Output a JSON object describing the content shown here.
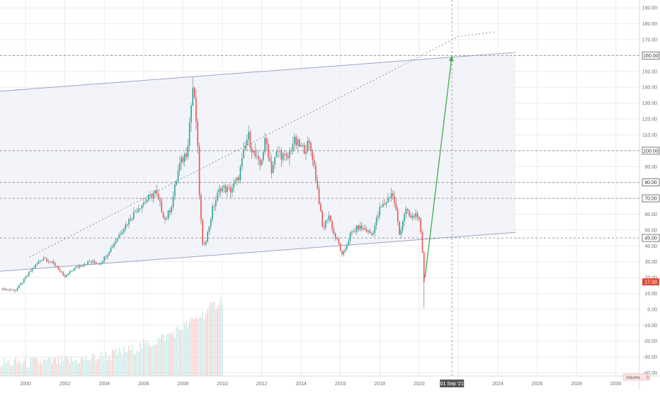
{
  "chart_data": {
    "type": "candlestick",
    "frequency": "monthly",
    "title": "",
    "xlabel": "",
    "ylabel": "",
    "y_axis_side": "right",
    "ylim": [
      -42,
      195
    ],
    "xlim": [
      1998.7,
      2031.2
    ],
    "y_ticks": [
      -40,
      -30,
      -20,
      -10,
      0,
      10,
      20,
      30,
      40,
      50,
      60,
      70,
      80,
      90,
      100,
      110,
      120,
      130,
      140,
      150,
      160,
      170,
      180,
      190
    ],
    "y_tick_labels": [
      "-40.00",
      "-30.00",
      "-20.00",
      "-10.00",
      "0.00",
      "10.00",
      "20.00",
      "30.00",
      "40.00",
      "50.00",
      "60.00",
      "70.00",
      "80.00",
      "90.00",
      "100.00",
      "110.00",
      "120.00",
      "130.00",
      "140.00",
      "150.00",
      "160.00",
      "170.00",
      "180.00",
      "190.00"
    ],
    "x_ticks": [
      2000,
      2002,
      2004,
      2006,
      2008,
      2010,
      2012,
      2014,
      2016,
      2018,
      2020,
      2022,
      2024,
      2026,
      2028,
      2030
    ],
    "x_tick_labels": [
      "2000",
      "2002",
      "2004",
      "2006",
      "2008",
      "2010",
      "2012",
      "2014",
      "2016",
      "2018",
      "2020",
      "",
      "2024",
      "2026",
      "2028",
      "2030"
    ],
    "price_anchors": [
      [
        1998.75,
        13
      ],
      [
        1999.5,
        12
      ],
      [
        2000.3,
        25
      ],
      [
        2000.9,
        33
      ],
      [
        2001.6,
        27
      ],
      [
        2001.95,
        20
      ],
      [
        2002.5,
        26
      ],
      [
        2003.2,
        30
      ],
      [
        2003.8,
        29
      ],
      [
        2004.3,
        38
      ],
      [
        2004.9,
        50
      ],
      [
        2005.3,
        57
      ],
      [
        2005.7,
        64
      ],
      [
        2006.6,
        74
      ],
      [
        2006.8,
        67
      ],
      [
        2007.1,
        56
      ],
      [
        2007.4,
        65
      ],
      [
        2007.8,
        90
      ],
      [
        2008.2,
        100
      ],
      [
        2008.5,
        140
      ],
      [
        2008.7,
        115
      ],
      [
        2008.85,
        68
      ],
      [
        2009.0,
        40
      ],
      [
        2009.2,
        45
      ],
      [
        2009.5,
        63
      ],
      [
        2009.9,
        77
      ],
      [
        2010.4,
        75
      ],
      [
        2010.8,
        82
      ],
      [
        2011.3,
        110
      ],
      [
        2011.6,
        98
      ],
      [
        2011.9,
        90
      ],
      [
        2012.2,
        107
      ],
      [
        2012.5,
        88
      ],
      [
        2012.8,
        100
      ],
      [
        2013.3,
        94
      ],
      [
        2013.6,
        106
      ],
      [
        2014.1,
        101
      ],
      [
        2014.4,
        104
      ],
      [
        2014.6,
        96
      ],
      [
        2014.9,
        70
      ],
      [
        2015.1,
        50
      ],
      [
        2015.4,
        60
      ],
      [
        2015.7,
        46
      ],
      [
        2015.9,
        42
      ],
      [
        2016.1,
        33
      ],
      [
        2016.5,
        47
      ],
      [
        2016.9,
        52
      ],
      [
        2017.3,
        50
      ],
      [
        2017.6,
        47
      ],
      [
        2018.0,
        63
      ],
      [
        2018.4,
        69
      ],
      [
        2018.6,
        74
      ],
      [
        2018.8,
        65
      ],
      [
        2019.0,
        47
      ],
      [
        2019.3,
        63
      ],
      [
        2019.6,
        57
      ],
      [
        2019.9,
        61
      ],
      [
        2020.05,
        52
      ],
      [
        2020.2,
        30
      ],
      [
        2020.3,
        20
      ]
    ],
    "last_price": 17.33,
    "last_price_label": "17.33",
    "horizontal_levels": [
      {
        "value": 160,
        "label": "160.00"
      },
      {
        "value": 100,
        "label": "100.00"
      },
      {
        "value": 80,
        "label": "80.00"
      },
      {
        "value": 70,
        "label": "70.00"
      },
      {
        "value": 45,
        "label": "45.00"
      }
    ],
    "channel": {
      "upper": [
        [
          1998.7,
          137.5
        ],
        [
          2024.9,
          162
        ]
      ],
      "lower": [
        [
          1998.7,
          24
        ],
        [
          2024.9,
          48.5
        ]
      ],
      "fill": "#eef0f8",
      "line_color": "#9ba3c7"
    },
    "dotted_trend": {
      "points": [
        [
          2000.2,
          33
        ],
        [
          2022.0,
          172
        ],
        [
          2023.9,
          175
        ]
      ],
      "color": "#8c8c8c"
    },
    "projection_arrow": {
      "from": [
        2020.3,
        20
      ],
      "to": [
        2021.67,
        160
      ],
      "color": "#4caf50"
    },
    "crosshair": {
      "x": 2021.67,
      "label": "01 Sep '21"
    },
    "volume": {
      "label": "Volume",
      "value_label": "0",
      "start": 1998.75,
      "end": 2010.0
    }
  },
  "colors": {
    "up": "#26a69a",
    "down": "#ef5350",
    "vol_up": "#c7e8e4",
    "vol_down": "#f8c9c7",
    "grid": "#ebebeb",
    "axis_text": "#6f6f6f",
    "price_tag": "#e04b3a",
    "level_tag": "#ffffff"
  }
}
